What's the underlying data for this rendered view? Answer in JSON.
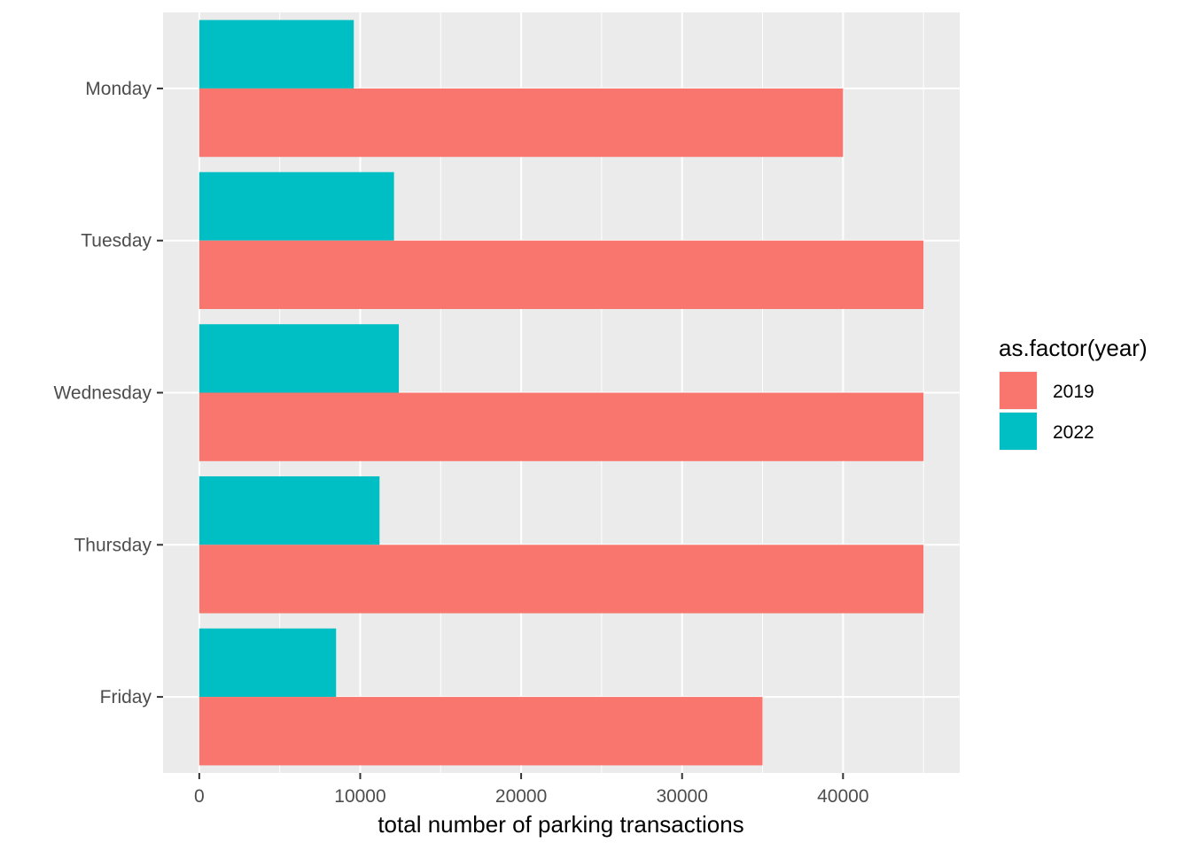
{
  "chart_data": {
    "type": "bar",
    "orientation": "horizontal",
    "categories": [
      "Monday",
      "Tuesday",
      "Wednesday",
      "Thursday",
      "Friday"
    ],
    "series": [
      {
        "name": "2019",
        "color": "#F8766D",
        "values": [
          40000,
          45000,
          45000,
          45000,
          35000
        ]
      },
      {
        "name": "2022",
        "color": "#00BFC4",
        "values": [
          9600,
          12100,
          12400,
          11200,
          8500
        ]
      }
    ],
    "xlabel": "total number of parking transactions",
    "ylabel": "",
    "xlim": [
      -2250,
      47250
    ],
    "xticks": [
      0,
      10000,
      20000,
      30000,
      40000
    ],
    "xtick_labels": [
      "0",
      "10000",
      "20000",
      "30000",
      "40000"
    ],
    "grid": true,
    "panel_background": "#EBEBEB",
    "legend": {
      "title": "as.factor(year)",
      "position": "right",
      "entries": [
        "2019",
        "2022"
      ]
    }
  }
}
